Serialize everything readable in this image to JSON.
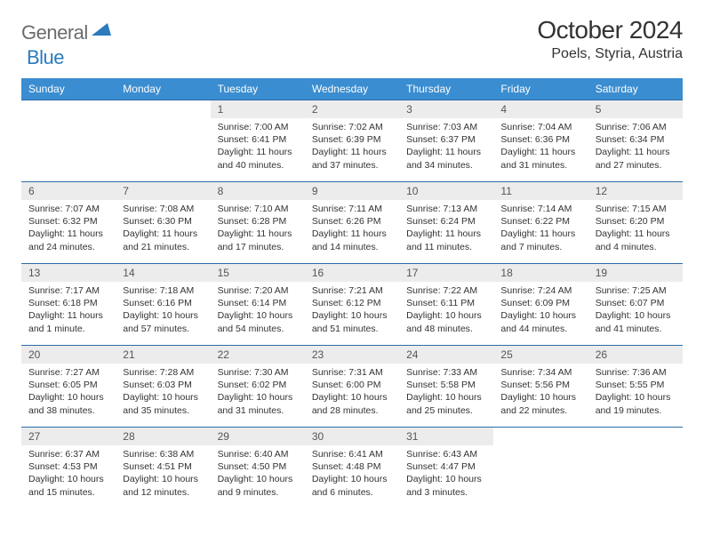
{
  "logo": {
    "text1": "General",
    "text2": "Blue"
  },
  "title": "October 2024",
  "location": "Poels, Styria, Austria",
  "colors": {
    "header_bg": "#3a8dd0",
    "header_text": "#ffffff",
    "row_border": "#2b6ca8",
    "daynum_bg": "#ececec",
    "logo_gray": "#6b6b6b",
    "logo_blue": "#2b7bbd"
  },
  "day_headers": [
    "Sunday",
    "Monday",
    "Tuesday",
    "Wednesday",
    "Thursday",
    "Friday",
    "Saturday"
  ],
  "weeks": [
    [
      null,
      null,
      {
        "n": "1",
        "sr": "7:00 AM",
        "ss": "6:41 PM",
        "dl": "11 hours and 40 minutes."
      },
      {
        "n": "2",
        "sr": "7:02 AM",
        "ss": "6:39 PM",
        "dl": "11 hours and 37 minutes."
      },
      {
        "n": "3",
        "sr": "7:03 AM",
        "ss": "6:37 PM",
        "dl": "11 hours and 34 minutes."
      },
      {
        "n": "4",
        "sr": "7:04 AM",
        "ss": "6:36 PM",
        "dl": "11 hours and 31 minutes."
      },
      {
        "n": "5",
        "sr": "7:06 AM",
        "ss": "6:34 PM",
        "dl": "11 hours and 27 minutes."
      }
    ],
    [
      {
        "n": "6",
        "sr": "7:07 AM",
        "ss": "6:32 PM",
        "dl": "11 hours and 24 minutes."
      },
      {
        "n": "7",
        "sr": "7:08 AM",
        "ss": "6:30 PM",
        "dl": "11 hours and 21 minutes."
      },
      {
        "n": "8",
        "sr": "7:10 AM",
        "ss": "6:28 PM",
        "dl": "11 hours and 17 minutes."
      },
      {
        "n": "9",
        "sr": "7:11 AM",
        "ss": "6:26 PM",
        "dl": "11 hours and 14 minutes."
      },
      {
        "n": "10",
        "sr": "7:13 AM",
        "ss": "6:24 PM",
        "dl": "11 hours and 11 minutes."
      },
      {
        "n": "11",
        "sr": "7:14 AM",
        "ss": "6:22 PM",
        "dl": "11 hours and 7 minutes."
      },
      {
        "n": "12",
        "sr": "7:15 AM",
        "ss": "6:20 PM",
        "dl": "11 hours and 4 minutes."
      }
    ],
    [
      {
        "n": "13",
        "sr": "7:17 AM",
        "ss": "6:18 PM",
        "dl": "11 hours and 1 minute."
      },
      {
        "n": "14",
        "sr": "7:18 AM",
        "ss": "6:16 PM",
        "dl": "10 hours and 57 minutes."
      },
      {
        "n": "15",
        "sr": "7:20 AM",
        "ss": "6:14 PM",
        "dl": "10 hours and 54 minutes."
      },
      {
        "n": "16",
        "sr": "7:21 AM",
        "ss": "6:12 PM",
        "dl": "10 hours and 51 minutes."
      },
      {
        "n": "17",
        "sr": "7:22 AM",
        "ss": "6:11 PM",
        "dl": "10 hours and 48 minutes."
      },
      {
        "n": "18",
        "sr": "7:24 AM",
        "ss": "6:09 PM",
        "dl": "10 hours and 44 minutes."
      },
      {
        "n": "19",
        "sr": "7:25 AM",
        "ss": "6:07 PM",
        "dl": "10 hours and 41 minutes."
      }
    ],
    [
      {
        "n": "20",
        "sr": "7:27 AM",
        "ss": "6:05 PM",
        "dl": "10 hours and 38 minutes."
      },
      {
        "n": "21",
        "sr": "7:28 AM",
        "ss": "6:03 PM",
        "dl": "10 hours and 35 minutes."
      },
      {
        "n": "22",
        "sr": "7:30 AM",
        "ss": "6:02 PM",
        "dl": "10 hours and 31 minutes."
      },
      {
        "n": "23",
        "sr": "7:31 AM",
        "ss": "6:00 PM",
        "dl": "10 hours and 28 minutes."
      },
      {
        "n": "24",
        "sr": "7:33 AM",
        "ss": "5:58 PM",
        "dl": "10 hours and 25 minutes."
      },
      {
        "n": "25",
        "sr": "7:34 AM",
        "ss": "5:56 PM",
        "dl": "10 hours and 22 minutes."
      },
      {
        "n": "26",
        "sr": "7:36 AM",
        "ss": "5:55 PM",
        "dl": "10 hours and 19 minutes."
      }
    ],
    [
      {
        "n": "27",
        "sr": "6:37 AM",
        "ss": "4:53 PM",
        "dl": "10 hours and 15 minutes."
      },
      {
        "n": "28",
        "sr": "6:38 AM",
        "ss": "4:51 PM",
        "dl": "10 hours and 12 minutes."
      },
      {
        "n": "29",
        "sr": "6:40 AM",
        "ss": "4:50 PM",
        "dl": "10 hours and 9 minutes."
      },
      {
        "n": "30",
        "sr": "6:41 AM",
        "ss": "4:48 PM",
        "dl": "10 hours and 6 minutes."
      },
      {
        "n": "31",
        "sr": "6:43 AM",
        "ss": "4:47 PM",
        "dl": "10 hours and 3 minutes."
      },
      null,
      null
    ]
  ],
  "labels": {
    "sunrise": "Sunrise: ",
    "sunset": "Sunset: ",
    "daylight": "Daylight: "
  }
}
